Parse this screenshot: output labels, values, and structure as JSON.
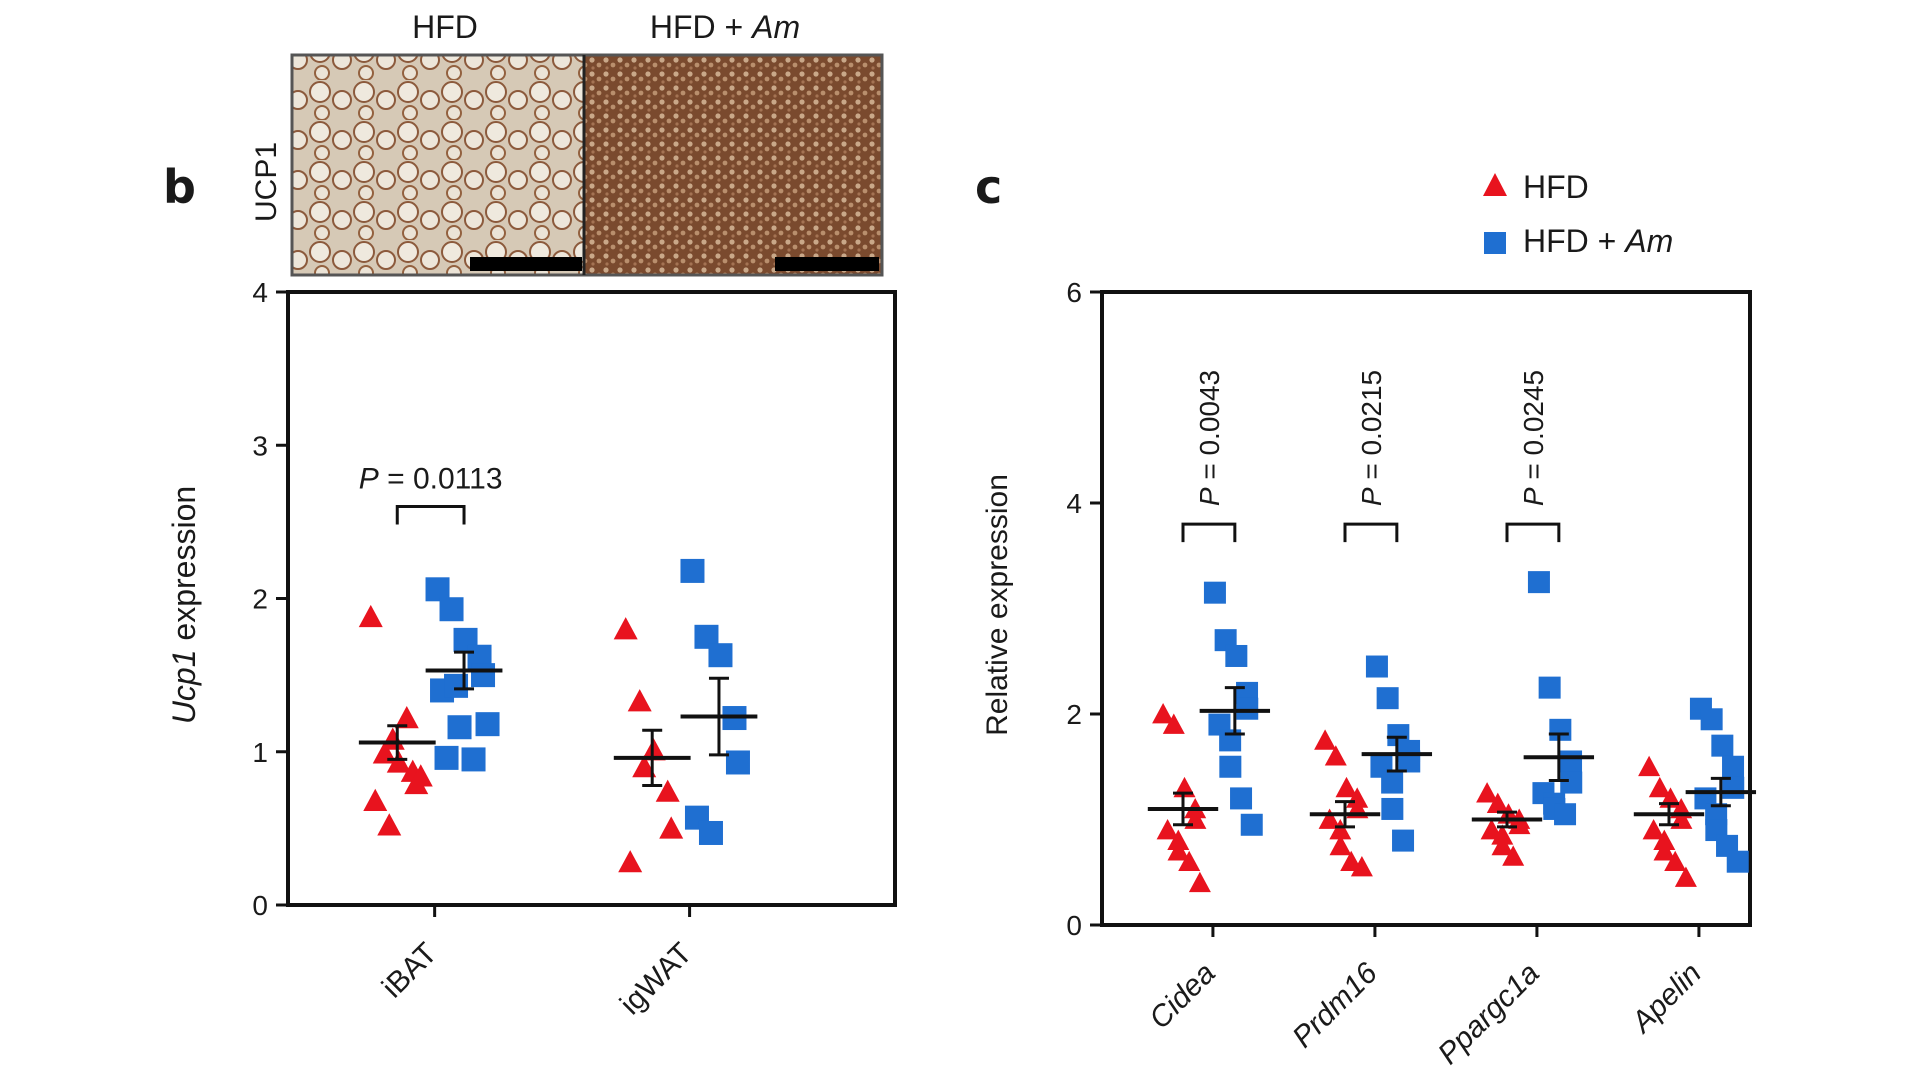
{
  "figure": {
    "micrograph": {
      "row_label": "UCP1",
      "columns": [
        {
          "label": "HFD"
        },
        {
          "label_main": "HFD + ",
          "label_italic": "Am"
        }
      ]
    },
    "legend": {
      "items": [
        {
          "label_main": "HFD",
          "label_italic": "",
          "color": "#e8131e",
          "marker": "triangle"
        },
        {
          "label_main": "HFD + ",
          "label_italic": "Am",
          "color": "#1f6fd1",
          "marker": "square"
        }
      ]
    }
  },
  "chart_data": [
    {
      "panel": "b",
      "type": "scatter",
      "ylabel_italic": "Ucp1",
      "ylabel_rest": " expression",
      "ylim": [
        0,
        4
      ],
      "yticks": [
        "0",
        "1",
        "2",
        "3",
        "4"
      ],
      "categories": [
        "iBAT",
        "igWAT"
      ],
      "series": [
        {
          "name": "HFD",
          "marker": "triangle",
          "color": "#e8131e",
          "points": [
            [
              1.88,
              0.99,
              0.93,
              0.87,
              0.79,
              0.68,
              0.52,
              1.08,
              1.22,
              0.84
            ],
            [
              1.8,
              1.33,
              1.01,
              0.74,
              0.5,
              0.28,
              0.9
            ]
          ],
          "mean": [
            1.06,
            0.96
          ],
          "sem": [
            0.11,
            0.18
          ]
        },
        {
          "name": "HFD + Am",
          "marker": "square",
          "color": "#1f6fd1",
          "points": [
            [
              2.06,
              1.93,
              1.73,
              1.62,
              1.5,
              1.4,
              1.43,
              1.16,
              0.95,
              1.18,
              0.96
            ],
            [
              2.18,
              1.75,
              1.63,
              1.22,
              0.93,
              0.57,
              0.47
            ]
          ],
          "mean": [
            1.53,
            1.23
          ],
          "sem": [
            0.12,
            0.25
          ]
        }
      ],
      "annotations": [
        {
          "text_italic": "P",
          "text_rest": " = 0.0113",
          "category": 0,
          "y": 2.6
        }
      ]
    },
    {
      "panel": "c",
      "type": "scatter",
      "ylabel": "Relative expression",
      "ylim": [
        0,
        6
      ],
      "yticks": [
        "0",
        "2",
        "4",
        "6"
      ],
      "categories": [
        "Cidea",
        "Prdm16",
        "Ppargc1a",
        "Apelin"
      ],
      "series": [
        {
          "name": "HFD",
          "marker": "triangle",
          "color": "#e8131e",
          "points": [
            [
              2.0,
              1.9,
              1.3,
              1.1,
              1.0,
              0.9,
              0.8,
              0.7,
              0.6,
              0.4
            ],
            [
              1.75,
              1.6,
              1.3,
              1.2,
              1.1,
              1.0,
              0.9,
              0.75,
              0.6,
              0.55
            ],
            [
              1.25,
              1.15,
              1.05,
              1.0,
              0.95,
              0.9,
              0.85,
              0.75,
              0.65
            ],
            [
              1.5,
              1.3,
              1.2,
              1.1,
              1.0,
              0.9,
              0.8,
              0.7,
              0.6,
              0.45
            ]
          ],
          "mean": [
            1.1,
            1.05,
            1.0,
            1.05
          ],
          "sem": [
            0.15,
            0.12,
            0.07,
            0.1
          ]
        },
        {
          "name": "HFD + Am",
          "marker": "square",
          "color": "#1f6fd1",
          "points": [
            [
              3.15,
              2.7,
              2.55,
              2.2,
              2.05,
              1.9,
              1.75,
              1.5,
              1.2,
              0.95
            ],
            [
              2.45,
              2.15,
              1.8,
              1.65,
              1.55,
              1.5,
              1.35,
              1.1,
              0.8
            ],
            [
              3.25,
              2.25,
              1.85,
              1.55,
              1.35,
              1.25,
              1.15,
              1.1,
              1.05
            ],
            [
              2.05,
              1.95,
              1.7,
              1.5,
              1.3,
              1.2,
              1.05,
              0.9,
              0.75,
              0.6
            ]
          ],
          "mean": [
            2.03,
            1.62,
            1.59,
            1.26
          ],
          "sem": [
            0.22,
            0.16,
            0.22,
            0.13
          ]
        }
      ],
      "annotations": [
        {
          "text_italic": "P",
          "text_rest": " = 0.0043",
          "category": 0,
          "y": 3.8
        },
        {
          "text_italic": "P",
          "text_rest": " = 0.0215",
          "category": 1,
          "y": 3.8
        },
        {
          "text_italic": "P",
          "text_rest": " = 0.0245",
          "category": 2,
          "y": 3.8
        }
      ]
    }
  ]
}
